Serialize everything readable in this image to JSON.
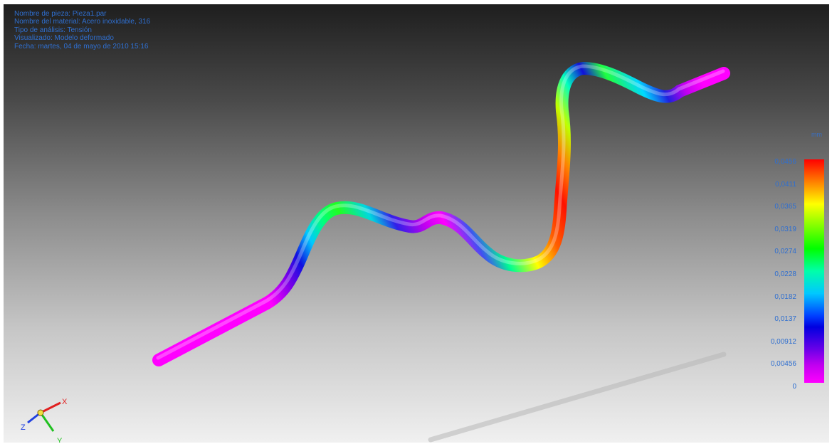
{
  "info": {
    "part_name": "Nombre de pieza: Pieza1.par",
    "material_name": "Nombre del material: Acero inoxidable, 316",
    "analysis_type": "Tipo de análisis: Tensión",
    "display": "Visualizado: Modelo deformado",
    "date": "Fecha: martes, 04 de mayo de 2010 15:16"
  },
  "legend": {
    "unit": "mm",
    "labels": [
      "0,0456",
      "0,0411",
      "0,0365",
      "0,0319",
      "0,0274",
      "0,0228",
      "0,0182",
      "0,0137",
      "0,00912",
      "0,00456",
      "0"
    ],
    "colors": [
      "#ff0000",
      "#ff7f00",
      "#ffff00",
      "#7fff00",
      "#00ff00",
      "#00ffaa",
      "#00c8ff",
      "#0040ff",
      "#0000e0",
      "#a000f0",
      "#ff00ff"
    ]
  },
  "triad": {
    "x_label": "X",
    "y_label": "Y",
    "z_label": "Z",
    "x_color": "#e02020",
    "y_color": "#20c020",
    "z_color": "#2040e0"
  }
}
